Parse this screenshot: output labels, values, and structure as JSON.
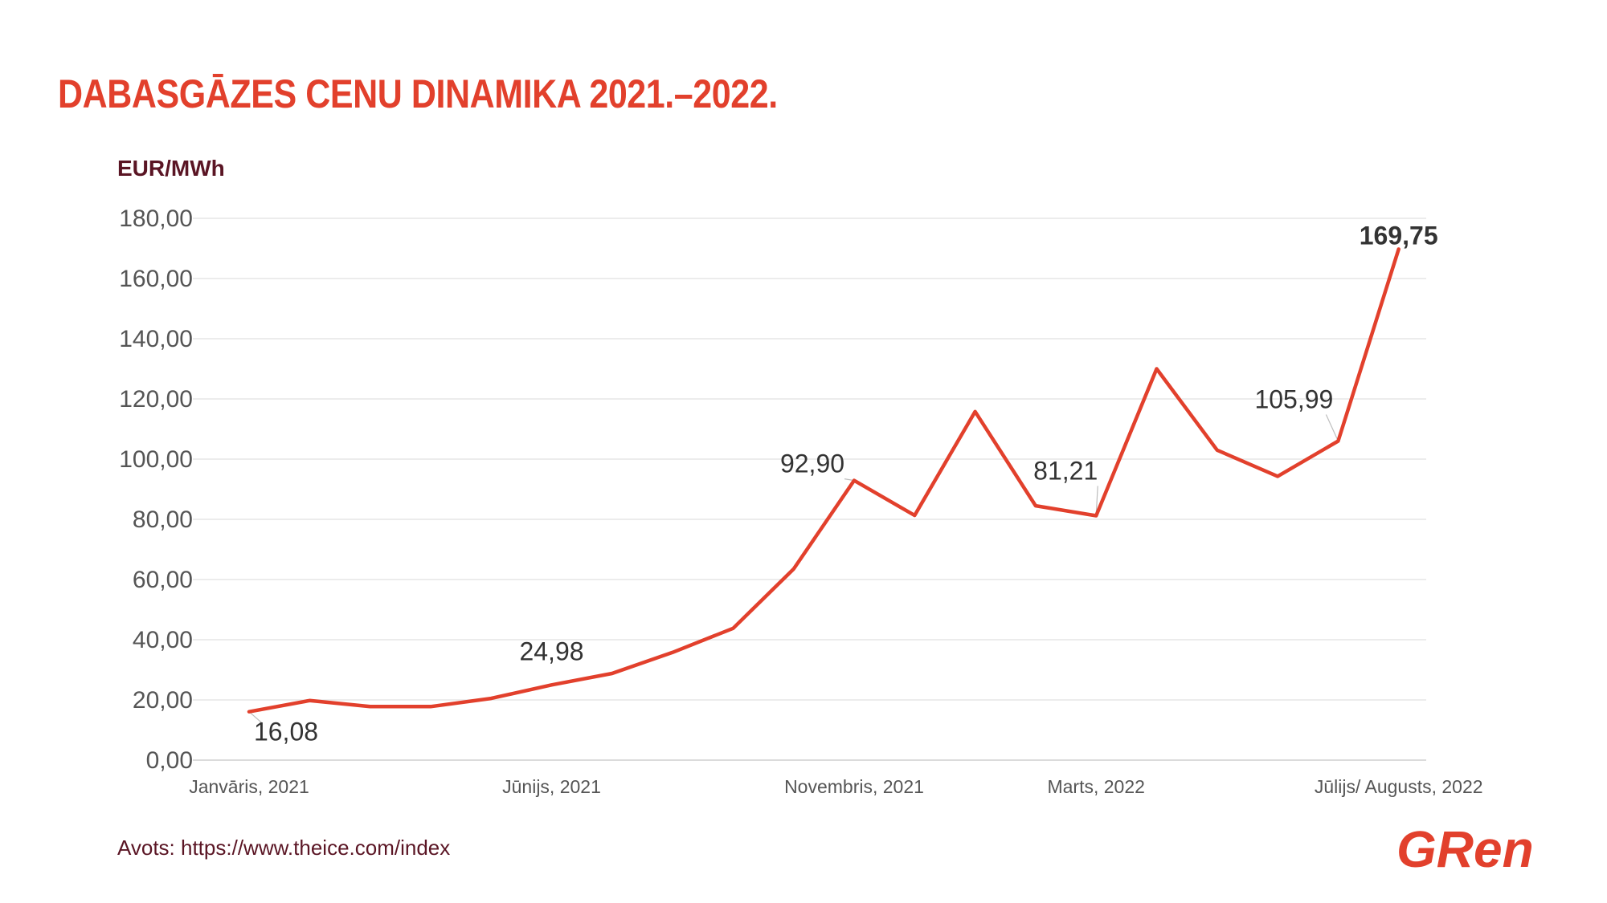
{
  "title": "DABASGĀZES CENU DINAMIKA 2021.–2022.",
  "source": "Avots:  https://www.theice.com/index",
  "brand": {
    "name": "Gren",
    "logo_text": "GRen"
  },
  "colors": {
    "accent": "#e2402c",
    "unit": "#5a1524",
    "source": "#5a1524",
    "axis_text": "#555555",
    "label_text": "#333333",
    "grid": "#e6e6e6"
  },
  "chart_data": {
    "type": "line",
    "title": "DABASGĀZES CENU DINAMIKA 2021.–2022.",
    "ylabel": "EUR/MWh",
    "xlabel": "",
    "ylim": [
      0,
      180
    ],
    "yticks": [
      0,
      20,
      40,
      60,
      80,
      100,
      120,
      140,
      160,
      180
    ],
    "ytick_labels": [
      "0,00",
      "20,00",
      "40,00",
      "60,00",
      "80,00",
      "100,00",
      "120,00",
      "140,00",
      "160,00",
      "180,00"
    ],
    "grid": true,
    "legend": "none",
    "x_labels": [
      {
        "index": 0,
        "text": "Janvāris, 2021"
      },
      {
        "index": 5,
        "text": "Jūnijs, 2021"
      },
      {
        "index": 10,
        "text": "Novembris, 2021"
      },
      {
        "index": 14,
        "text": "Marts, 2022"
      },
      {
        "index": 19,
        "text": "Jūlijs/ Augusts, 2022"
      }
    ],
    "series": [
      {
        "values": [
          16.08,
          19.8,
          17.8,
          17.8,
          20.5,
          24.98,
          28.8,
          35.8,
          43.8,
          63.5,
          92.9,
          81.3,
          115.8,
          84.5,
          81.21,
          130.0,
          103.0,
          94.3,
          105.99,
          169.75
        ]
      }
    ],
    "annotations": [
      {
        "index": 0,
        "text": "16,08",
        "bold": false
      },
      {
        "index": 5,
        "text": "24,98",
        "bold": false
      },
      {
        "index": 10,
        "text": "92,90",
        "bold": false
      },
      {
        "index": 14,
        "text": "81,21",
        "bold": false
      },
      {
        "index": 18,
        "text": "105,99",
        "bold": false
      },
      {
        "index": 19,
        "text": "169,75",
        "bold": true
      }
    ]
  }
}
